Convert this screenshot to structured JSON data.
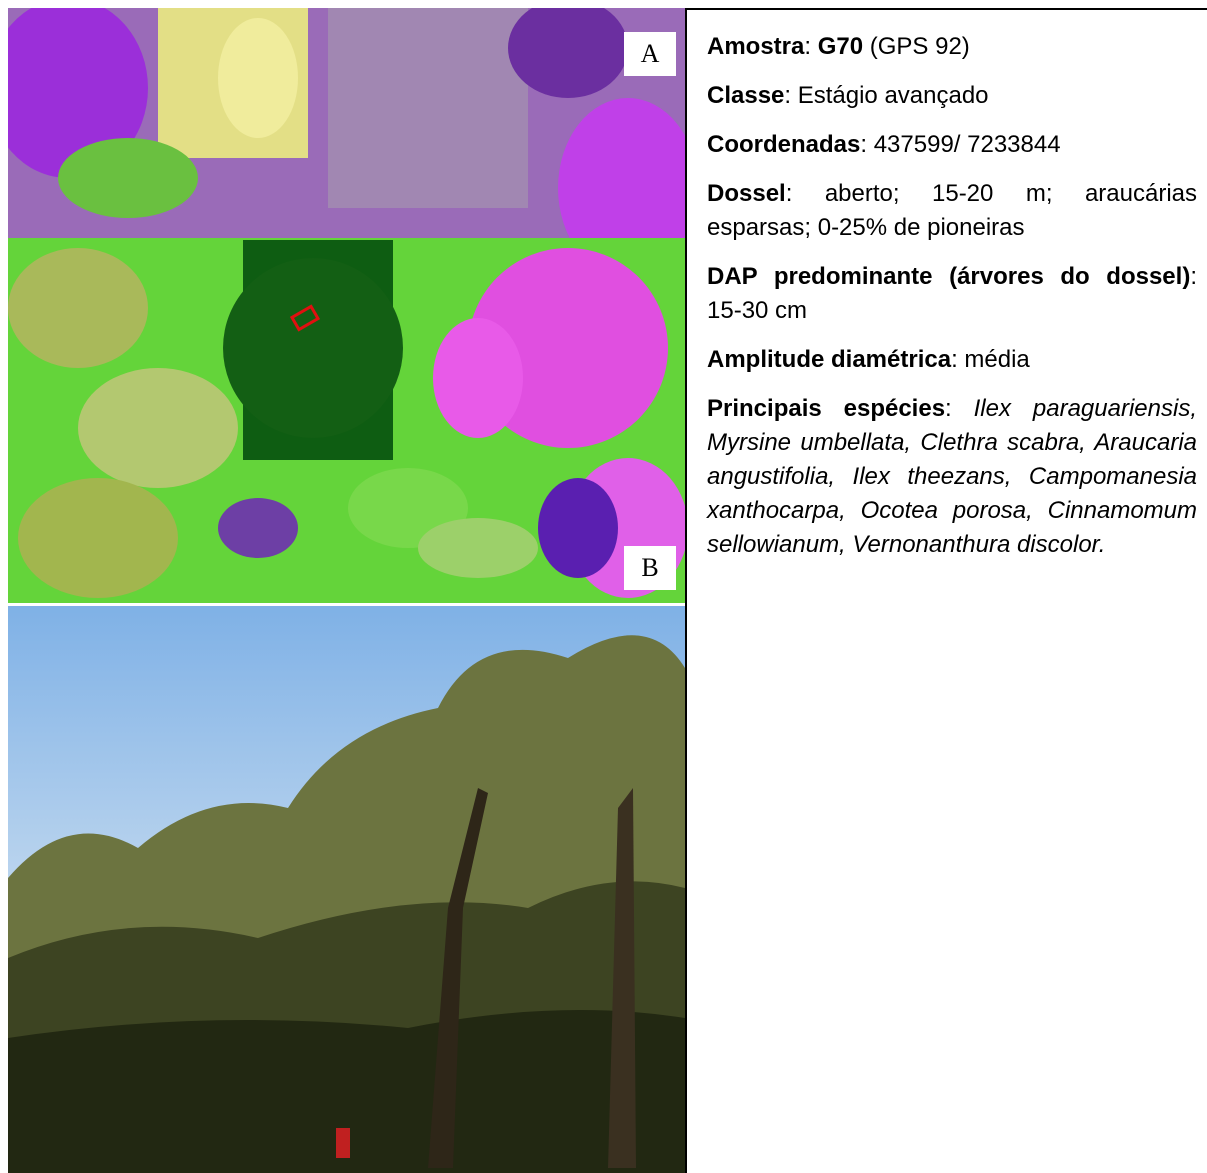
{
  "panel_labels": {
    "a": "A",
    "b": "B"
  },
  "fields": [
    [
      "Amostra",
      ": ",
      "G70",
      " (GPS 92)"
    ],
    [
      "Classe",
      ": Estágio avançado"
    ],
    [
      "Coordenadas",
      ": 437599/ 7233844"
    ],
    [
      "Dossel",
      ": aberto; 15-20 m; araucárias esparsas; 0-25% de pioneiras"
    ],
    [
      "DAP predominante (árvores do dossel)",
      ": 15-30 cm"
    ],
    [
      "Amplitude diamétrica",
      ": média"
    ],
    [
      "Principais espécies",
      ": ",
      "Ilex paraguariensis, Myrsine umbellata, Clethra scabra, Araucaria angustifolia, Ilex theezans, Campomanesia xanthocarpa, Ocotea porosa, Cinnamomum sellowianum, Vernonanthura discolor."
    ]
  ]
}
